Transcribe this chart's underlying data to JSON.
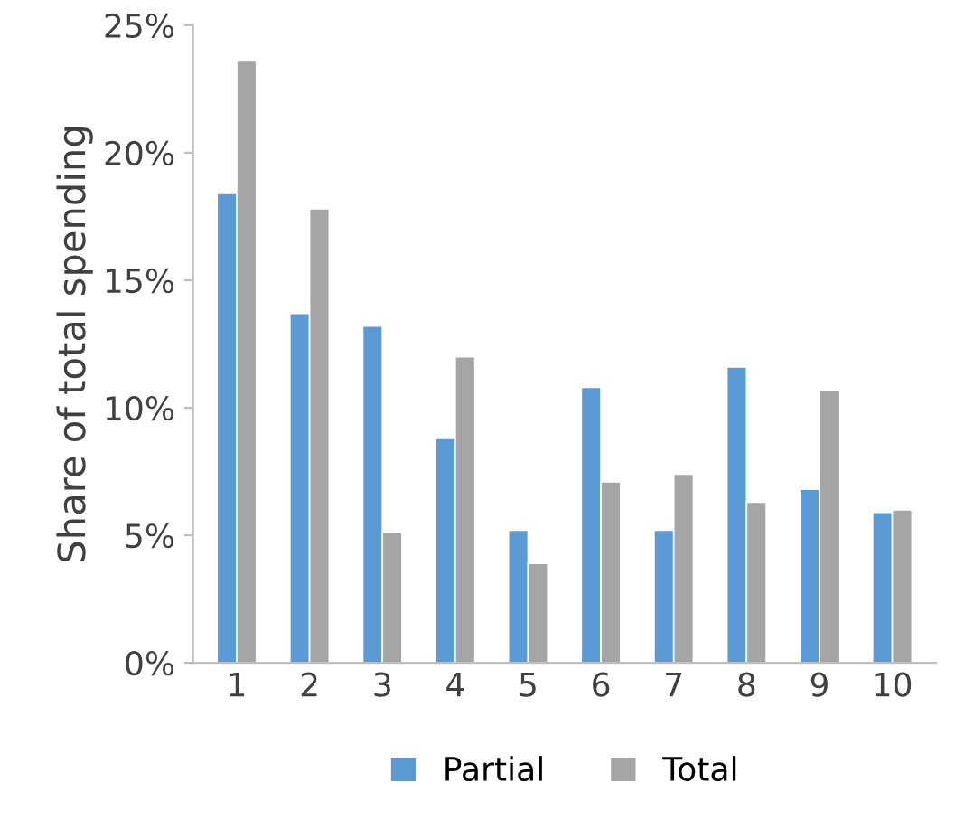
{
  "chart_data": {
    "type": "bar",
    "ylabel": "Share of total spending",
    "categories": [
      "1",
      "2",
      "3",
      "4",
      "5",
      "6",
      "7",
      "8",
      "9",
      "10"
    ],
    "series": [
      {
        "name": "Partial",
        "color": "#5b9bd5",
        "values": [
          18.4,
          13.7,
          13.2,
          8.8,
          5.2,
          10.8,
          5.2,
          11.6,
          6.8,
          5.9
        ]
      },
      {
        "name": "Total",
        "color": "#a5a5a5",
        "values": [
          23.6,
          17.8,
          5.1,
          12.0,
          3.9,
          7.1,
          7.4,
          6.3,
          10.7,
          6.0
        ]
      }
    ],
    "ylim": [
      0,
      25
    ],
    "yticks": [
      {
        "value": 0,
        "label": "0%"
      },
      {
        "value": 5,
        "label": "5%"
      },
      {
        "value": 10,
        "label": "10%"
      },
      {
        "value": 15,
        "label": "15%"
      },
      {
        "value": 20,
        "label": "20%"
      },
      {
        "value": 25,
        "label": "25%"
      }
    ],
    "grid": false,
    "legend": "bottom"
  }
}
